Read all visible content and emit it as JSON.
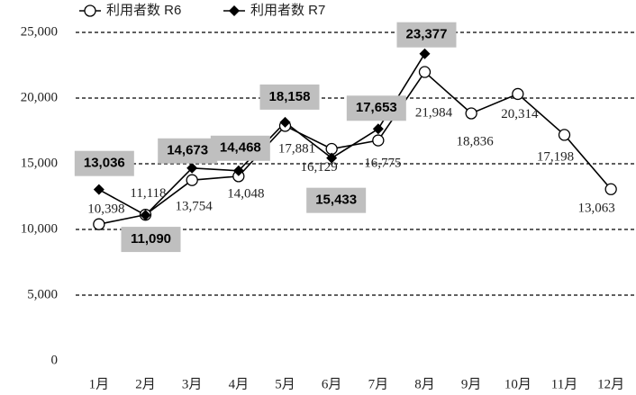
{
  "chart_data": {
    "type": "line",
    "categories": [
      "1月",
      "2月",
      "3月",
      "4月",
      "5月",
      "6月",
      "7月",
      "8月",
      "9月",
      "10月",
      "11月",
      "12月"
    ],
    "series": [
      {
        "name": "利用者数 R6",
        "color": "#000000",
        "marker": "circle",
        "values": [
          10398,
          11118,
          13754,
          14048,
          17881,
          16129,
          16775,
          21984,
          18836,
          20314,
          17198,
          13063
        ],
        "value_labels": [
          "10,398",
          "11,118",
          "13,754",
          "14,048",
          "17,881",
          "16,129",
          "16,775",
          "21,984",
          "18,836",
          "20,314",
          "17,198",
          "13,063"
        ]
      },
      {
        "name": "利用者数 R7",
        "color": "#000000",
        "marker": "diamond",
        "values": [
          13036,
          11090,
          14673,
          14468,
          18158,
          15433,
          17653,
          23377,
          null,
          null,
          null,
          null
        ],
        "value_labels": [
          "13,036",
          "11,090",
          "14,673",
          "14,468",
          "18,158",
          "15,433",
          "17,653",
          "23,377",
          null,
          null,
          null,
          null
        ]
      }
    ],
    "ylim": [
      0,
      25000
    ],
    "yticks": [
      0,
      {
        "value": 5000,
        "label": "5,000"
      },
      {
        "value": 10000,
        "label": "10,000"
      },
      {
        "value": 15000,
        "label": "15,000"
      },
      {
        "value": 20000,
        "label": "20,000"
      },
      {
        "value": 25000,
        "label": "25,000"
      }
    ],
    "grid": true,
    "legend": "top-left"
  }
}
